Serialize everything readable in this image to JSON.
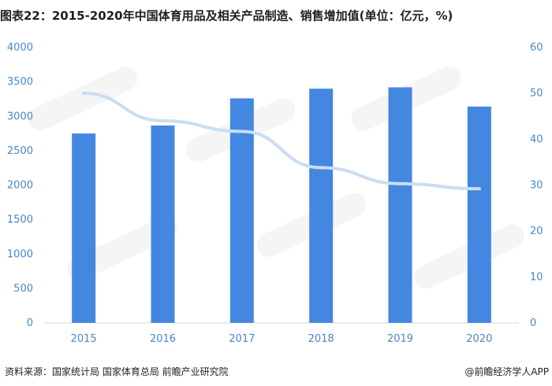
{
  "title": "图表22：2015-2020年中国体育用品及相关产品制造、销售增加值(单位：亿元，%)",
  "footer": {
    "source": "资料来源：国家统计局 国家体育总局 前瞻产业研究院",
    "brand": "@前瞻经济学人APP"
  },
  "colors": {
    "bar": "#4387e0",
    "line": "#c9ddf3",
    "axis_text": "#4a86c8",
    "grid": "#d9d9d9"
  },
  "chart_data": {
    "type": "bar",
    "categories": [
      "2015",
      "2016",
      "2017",
      "2018",
      "2019",
      "2020"
    ],
    "series": [
      {
        "type": "bar",
        "axis": "left",
        "values": [
          2750,
          2865,
          3260,
          3400,
          3420,
          3140
        ]
      },
      {
        "type": "line",
        "axis": "right",
        "values": [
          50,
          44,
          41.7,
          33.8,
          30.3,
          29.2
        ]
      }
    ],
    "ylim_left": [
      0,
      4000
    ],
    "yticks_left": [
      "0",
      "500",
      "1000",
      "1500",
      "2000",
      "2500",
      "3000",
      "3500",
      "4000"
    ],
    "ylim_right": [
      0,
      60
    ],
    "yticks_right": [
      "0",
      "10",
      "20",
      "30",
      "40",
      "50",
      "60"
    ],
    "grid": false,
    "legend": "none"
  }
}
